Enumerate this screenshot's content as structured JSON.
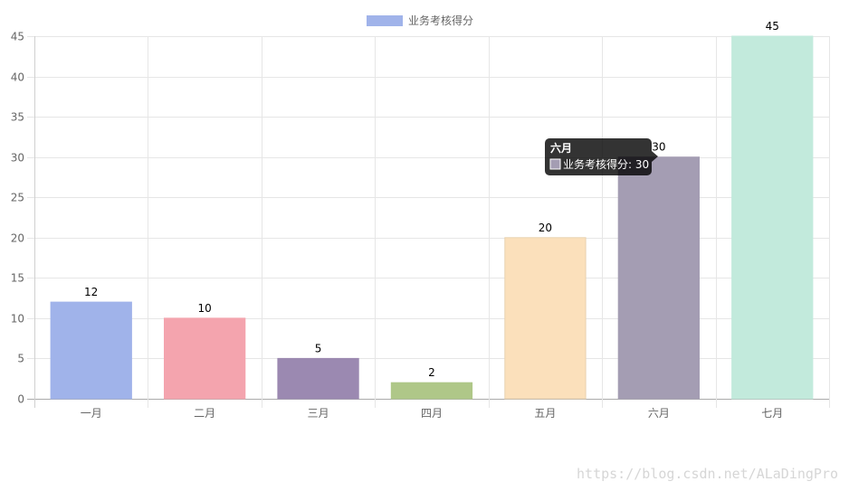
{
  "chart_data": {
    "type": "bar",
    "categories": [
      "一月",
      "二月",
      "三月",
      "四月",
      "五月",
      "六月",
      "七月"
    ],
    "series": [
      {
        "name": "业务考核得分",
        "values": [
          12,
          10,
          5,
          2,
          20,
          30,
          45
        ]
      }
    ],
    "bar_colors": [
      "#a0b3ea",
      "#f4a4ae",
      "#9b89b1",
      "#afc788",
      "#fbe0bb",
      "#a49db3",
      "#c2eadc"
    ],
    "bar_border_colors": [
      "#a0b3ea",
      "#f4a4ae",
      "#9b89b1",
      "#afc788",
      "#e8d2b0",
      "#a49db3",
      "#c2eadc"
    ],
    "legend_color": "#a0b3ea",
    "ylim": [
      0,
      45
    ],
    "yticks": [
      0,
      5,
      10,
      15,
      20,
      25,
      30,
      35,
      40,
      45
    ],
    "grid": true,
    "legend_position": "top",
    "show_data_labels": true,
    "tooltip": {
      "title": "六月",
      "label": "业务考核得分: 30",
      "swatch_color": "#a49db3",
      "category_index": 5
    }
  },
  "watermark": "https://blog.csdn.net/ALaDingPro"
}
